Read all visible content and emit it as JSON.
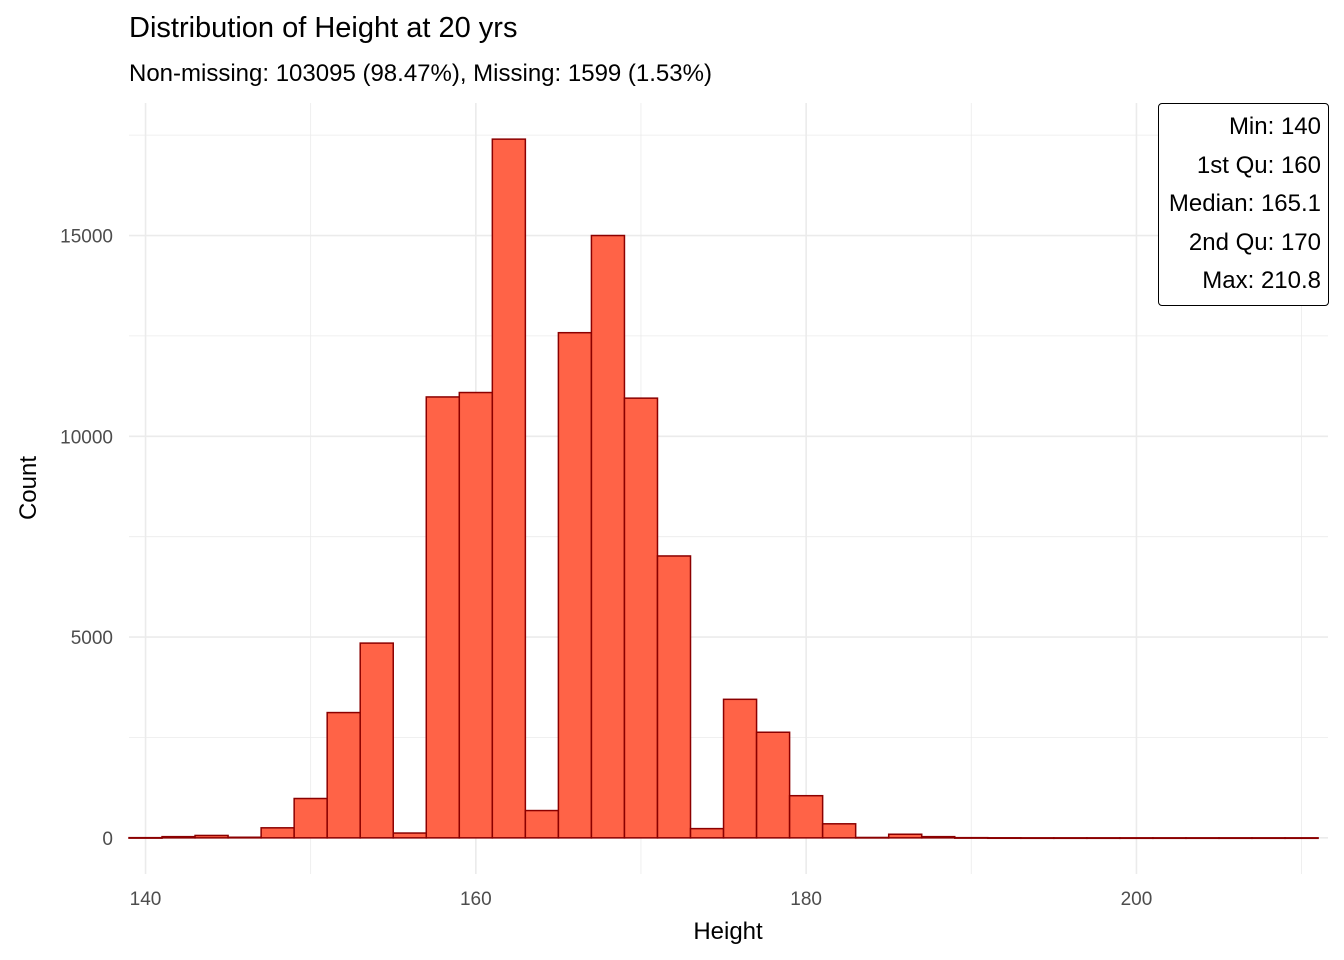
{
  "chart_data": {
    "type": "bar",
    "title": "Distribution of Height at 20 yrs",
    "subtitle": "Non-missing: 103095 (98.47%), Missing: 1599 (1.53%)",
    "xlabel": "Height",
    "ylabel": "Count",
    "xlim": [
      139.1,
      211.3
    ],
    "ylim": [
      0,
      17400
    ],
    "x_ticks": [
      140,
      160,
      180,
      200
    ],
    "y_ticks": [
      0,
      5000,
      10000,
      15000
    ],
    "bin_width": 2,
    "grid": true,
    "bins": [
      {
        "start": 139,
        "end": 141,
        "count": 5
      },
      {
        "start": 141,
        "end": 143,
        "count": 30
      },
      {
        "start": 143,
        "end": 145,
        "count": 60
      },
      {
        "start": 145,
        "end": 147,
        "count": 15
      },
      {
        "start": 147,
        "end": 149,
        "count": 250
      },
      {
        "start": 149,
        "end": 151,
        "count": 980
      },
      {
        "start": 151,
        "end": 153,
        "count": 3120
      },
      {
        "start": 153,
        "end": 155,
        "count": 4850
      },
      {
        "start": 155,
        "end": 157,
        "count": 120
      },
      {
        "start": 157,
        "end": 159,
        "count": 10980
      },
      {
        "start": 159,
        "end": 161,
        "count": 11090
      },
      {
        "start": 161,
        "end": 163,
        "count": 17400
      },
      {
        "start": 163,
        "end": 165,
        "count": 680
      },
      {
        "start": 165,
        "end": 167,
        "count": 12580
      },
      {
        "start": 167,
        "end": 169,
        "count": 15000
      },
      {
        "start": 169,
        "end": 171,
        "count": 10950
      },
      {
        "start": 171,
        "end": 173,
        "count": 7020
      },
      {
        "start": 173,
        "end": 175,
        "count": 230
      },
      {
        "start": 175,
        "end": 177,
        "count": 3450
      },
      {
        "start": 177,
        "end": 179,
        "count": 2630
      },
      {
        "start": 179,
        "end": 181,
        "count": 1050
      },
      {
        "start": 181,
        "end": 183,
        "count": 350
      },
      {
        "start": 183,
        "end": 185,
        "count": 10
      },
      {
        "start": 185,
        "end": 187,
        "count": 90
      },
      {
        "start": 187,
        "end": 189,
        "count": 30
      },
      {
        "start": 189,
        "end": 191,
        "count": 5
      },
      {
        "start": 191,
        "end": 193,
        "count": 2
      },
      {
        "start": 193,
        "end": 195,
        "count": 1
      },
      {
        "start": 195,
        "end": 197,
        "count": 1
      },
      {
        "start": 197,
        "end": 199,
        "count": 1
      },
      {
        "start": 199,
        "end": 201,
        "count": 1
      },
      {
        "start": 201,
        "end": 203,
        "count": 1
      },
      {
        "start": 203,
        "end": 205,
        "count": 1
      },
      {
        "start": 205,
        "end": 207,
        "count": 1
      },
      {
        "start": 207,
        "end": 209,
        "count": 1
      },
      {
        "start": 209,
        "end": 211,
        "count": 1
      }
    ],
    "bar_fill": "#FF6347",
    "bar_outline": "#8B0000",
    "grid_color": "#EBEBEB",
    "summary": {
      "min": "Min: 140",
      "q1": "1st Qu: 160",
      "median": "Median: 165.1",
      "q2": "2nd Qu: 170",
      "max": "Max: 210.8"
    },
    "summary_position": "top-right"
  }
}
